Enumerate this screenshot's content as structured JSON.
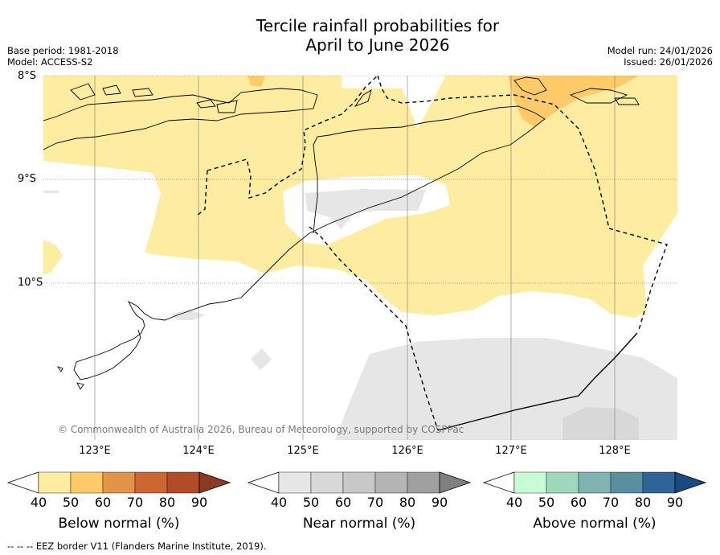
{
  "title_line1": "Tercile rainfall probabilities for",
  "title_line2": "April to June 2026",
  "base_period": "Base period: 1981-2018",
  "model": "Model: ACCESS-S2",
  "model_run": "Model run: 24/01/2026",
  "issued": "Issued: 26/01/2026",
  "lat_labels": [
    "8°S",
    "9°S",
    "10°S"
  ],
  "lon_labels": [
    "123°E",
    "124°E",
    "125°E",
    "126°E",
    "127°E",
    "128°E"
  ],
  "copyright": "© Commonwealth of Australia 2026, Bureau of Meteorology, supported by COSPPac",
  "colorbars": [
    {
      "label": "Below normal (%)",
      "ticks": [
        "40",
        "50",
        "60",
        "70",
        "80",
        "90"
      ],
      "colors": [
        "#ffffff",
        "#feeca0",
        "#fecb68",
        "#e29449",
        "#cc6633",
        "#b04c26",
        "#8c3a22"
      ]
    },
    {
      "label": "Near normal (%)",
      "ticks": [
        "40",
        "50",
        "60",
        "70",
        "80",
        "90"
      ],
      "colors": [
        "#ffffff",
        "#e6e6e6",
        "#d8d8d8",
        "#c8c8c8",
        "#b4b4b4",
        "#a0a0a0",
        "#808080"
      ]
    },
    {
      "label": "Above normal (%)",
      "ticks": [
        "40",
        "50",
        "60",
        "70",
        "80",
        "90"
      ],
      "colors": [
        "#ffffff",
        "#c8fcd6",
        "#a0d8bc",
        "#7fb4b0",
        "#5a8fa0",
        "#2e6498",
        "#1a4a80"
      ]
    }
  ],
  "footnote": "-- -- -- EEZ border V11 (Flanders Marine Institute, 2019).",
  "colors": {
    "below_40_50": "#feeca0",
    "below_50_60": "#fecb68",
    "near_40_50": "#e6e6e6",
    "near_50_60": "#d8d8d8"
  }
}
